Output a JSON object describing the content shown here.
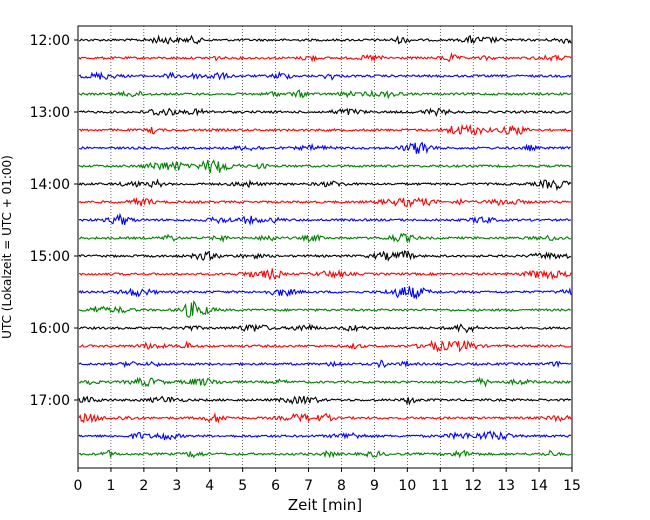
{
  "chart_data": {
    "type": "line",
    "title": "",
    "xlabel": "Zeit  [min]",
    "ylabel": "UTC (Lokalzeit = UTC + 01:00)",
    "xlim": [
      0,
      15
    ],
    "x_ticks": [
      "0",
      "1",
      "2",
      "3",
      "4",
      "5",
      "6",
      "7",
      "8",
      "9",
      "10",
      "11",
      "12",
      "13",
      "14",
      "15"
    ],
    "y_ticks": [
      "12:00",
      "13:00",
      "14:00",
      "15:00",
      "16:00",
      "17:00"
    ],
    "grid": "vertical dotted",
    "trace_colors": [
      "#000000",
      "#ff0000",
      "#0000ff",
      "#008000"
    ],
    "traces": [
      {
        "start": "12:00",
        "color": "#000000"
      },
      {
        "start": "12:15",
        "color": "#ff0000"
      },
      {
        "start": "12:30",
        "color": "#0000ff"
      },
      {
        "start": "12:45",
        "color": "#008000"
      },
      {
        "start": "13:00",
        "color": "#000000"
      },
      {
        "start": "13:15",
        "color": "#ff0000"
      },
      {
        "start": "13:30",
        "color": "#0000ff"
      },
      {
        "start": "13:45",
        "color": "#008000"
      },
      {
        "start": "14:00",
        "color": "#000000"
      },
      {
        "start": "14:15",
        "color": "#ff0000"
      },
      {
        "start": "14:30",
        "color": "#0000ff"
      },
      {
        "start": "14:45",
        "color": "#008000"
      },
      {
        "start": "15:00",
        "color": "#000000"
      },
      {
        "start": "15:15",
        "color": "#ff0000"
      },
      {
        "start": "15:30",
        "color": "#0000ff"
      },
      {
        "start": "15:45",
        "color": "#008000"
      },
      {
        "start": "16:00",
        "color": "#000000"
      },
      {
        "start": "16:15",
        "color": "#ff0000"
      },
      {
        "start": "16:30",
        "color": "#0000ff"
      },
      {
        "start": "16:45",
        "color": "#008000"
      },
      {
        "start": "17:00",
        "color": "#000000"
      },
      {
        "start": "17:15",
        "color": "#ff0000"
      },
      {
        "start": "17:30",
        "color": "#0000ff"
      },
      {
        "start": "17:45",
        "color": "#008000"
      }
    ]
  }
}
